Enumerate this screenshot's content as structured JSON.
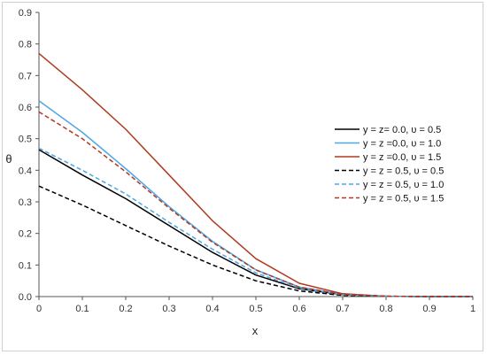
{
  "chart_data": {
    "type": "line",
    "xlabel": "x",
    "ylabel": "θ",
    "xlim": [
      0,
      1
    ],
    "ylim": [
      0,
      0.9
    ],
    "xticks": [
      "0",
      "0.1",
      "0.2",
      "0.3",
      "0.4",
      "0.5",
      "0.6",
      "0.7",
      "0.8",
      "0.9",
      "1"
    ],
    "yticks": [
      "0.0",
      "0.1",
      "0.2",
      "0.3",
      "0.4",
      "0.5",
      "0.6",
      "0.7",
      "0.8",
      "0.9"
    ],
    "grid": false,
    "legend_position": "right",
    "x": [
      0,
      0.1,
      0.2,
      0.3,
      0.4,
      0.5,
      0.6,
      0.7,
      0.8,
      0.9,
      1.0
    ],
    "series": [
      {
        "name": "y = z= 0.0, υ = 0.5",
        "color": "#000000",
        "dash": "solid",
        "values": [
          0.465,
          0.385,
          0.31,
          0.225,
          0.14,
          0.068,
          0.025,
          0.006,
          0.001,
          0.0,
          0.0
        ]
      },
      {
        "name": "y = z =0.0, υ = 1.0",
        "color": "#4ea6e6",
        "dash": "solid",
        "values": [
          0.62,
          0.52,
          0.405,
          0.285,
          0.175,
          0.085,
          0.03,
          0.007,
          0.001,
          0.0,
          0.0
        ]
      },
      {
        "name": "y = z =0.0, υ = 1.5",
        "color": "#b03a1e",
        "dash": "solid",
        "values": [
          0.77,
          0.655,
          0.53,
          0.385,
          0.24,
          0.12,
          0.042,
          0.009,
          0.001,
          0.0,
          0.0
        ]
      },
      {
        "name": "y = z = 0.5, υ = 0.5",
        "color": "#000000",
        "dash": "dashed",
        "values": [
          0.35,
          0.29,
          0.225,
          0.16,
          0.1,
          0.05,
          0.018,
          0.004,
          0.001,
          0.0,
          0.0
        ]
      },
      {
        "name": "y = z = 0.5, υ = 1.0",
        "color": "#4ea6e6",
        "dash": "dashed",
        "values": [
          0.47,
          0.4,
          0.325,
          0.235,
          0.15,
          0.075,
          0.027,
          0.006,
          0.001,
          0.0,
          0.0
        ]
      },
      {
        "name": "y = z = 0.5, υ = 1.5",
        "color": "#b03a1e",
        "dash": "dashed",
        "values": [
          0.585,
          0.5,
          0.395,
          0.28,
          0.172,
          0.084,
          0.03,
          0.007,
          0.001,
          0.0,
          0.0
        ]
      }
    ]
  }
}
